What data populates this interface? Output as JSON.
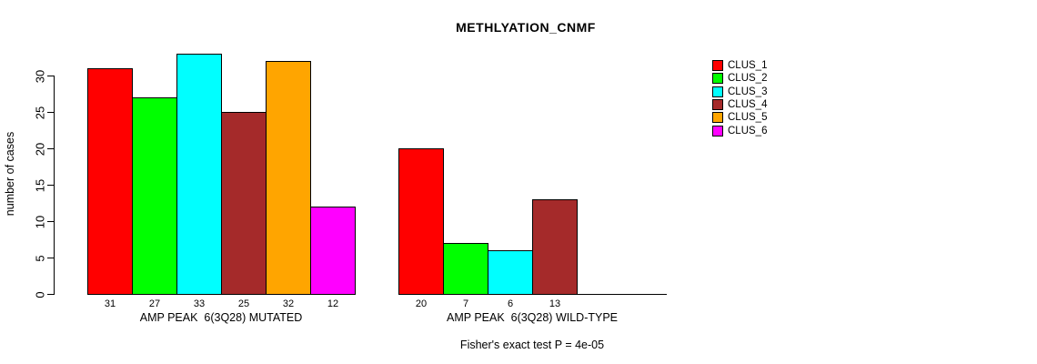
{
  "chart_data": {
    "type": "bar",
    "title": "METHLYATION_CNMF",
    "ylabel": "number of cases",
    "xlabel": "",
    "yticks": [
      0,
      5,
      10,
      15,
      20,
      25,
      30
    ],
    "ylim": [
      0,
      33
    ],
    "grid": false,
    "legend_position": "top-right-outside-plot",
    "legend": [
      {
        "name": "CLUS_1",
        "color": "#FF0000"
      },
      {
        "name": "CLUS_2",
        "color": "#00FF00"
      },
      {
        "name": "CLUS_3",
        "color": "#00FFFF"
      },
      {
        "name": "CLUS_4",
        "color": "#A52A2A"
      },
      {
        "name": "CLUS_5",
        "color": "#FFA500"
      },
      {
        "name": "CLUS_6",
        "color": "#FF00FF"
      }
    ],
    "categories": [
      "CLUS_1",
      "CLUS_2",
      "CLUS_3",
      "CLUS_4",
      "CLUS_5",
      "CLUS_6"
    ],
    "groups": [
      {
        "label": "AMP PEAK  6(3Q28) MUTATED",
        "values": [
          31,
          27,
          33,
          25,
          32,
          12
        ]
      },
      {
        "label": "AMP PEAK  6(3Q28) WILD-TYPE",
        "values": [
          20,
          7,
          6,
          13,
          0,
          0
        ]
      }
    ],
    "caption": "Fisher's exact test P = 4e-05",
    "colors": {
      "background": "#FFFFFF",
      "axis": "#000000",
      "text": "#000000"
    }
  }
}
